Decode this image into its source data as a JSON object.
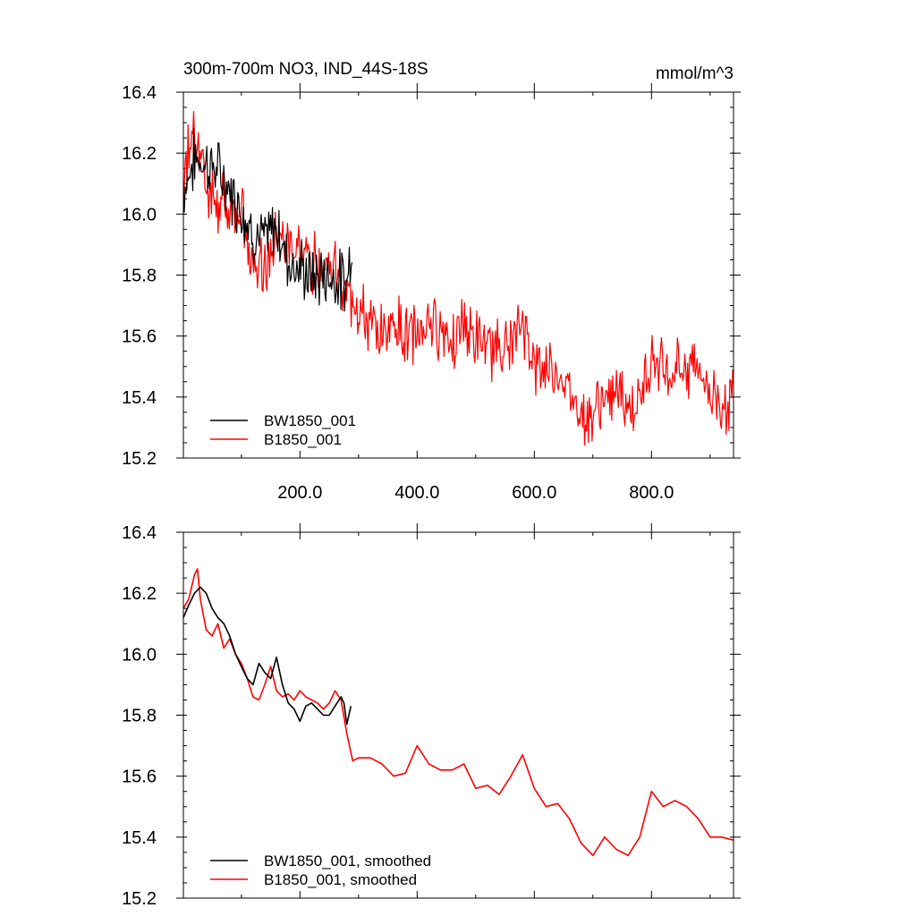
{
  "colors": {
    "BW1850_001": "#000000",
    "B1850_001": "#ff0000"
  },
  "chart_data": [
    {
      "type": "line",
      "title": "300m-700m NO3, IND_44S-18S",
      "units": "mmol/m^3",
      "xlim": [
        1,
        940
      ],
      "ylim": [
        15.2,
        16.4
      ],
      "x_ticks": [
        200,
        400,
        600,
        800
      ],
      "x_tick_labels": [
        "200.0",
        "400.0",
        "600.0",
        "800.0"
      ],
      "y_ticks": [
        15.2,
        15.4,
        15.6,
        15.8,
        16.0,
        16.2,
        16.4
      ],
      "y_tick_labels": [
        "15.2",
        "15.4",
        "15.6",
        "15.8",
        "16.0",
        "16.2",
        "16.4"
      ],
      "legend": "bottom-left",
      "series": [
        {
          "name": "BW1850_001",
          "color": "#000000",
          "x": [
            1,
            20,
            40,
            60,
            80,
            100,
            120,
            140,
            160,
            180,
            200,
            220,
            240,
            260,
            280,
            290
          ],
          "values": [
            16.08,
            16.18,
            16.17,
            16.14,
            16.08,
            16.02,
            15.94,
            15.91,
            15.96,
            15.85,
            15.82,
            15.79,
            15.8,
            15.79,
            15.77,
            15.95
          ]
        },
        {
          "name": "B1850_001",
          "color": "#ff0000",
          "x": [
            1,
            20,
            40,
            60,
            80,
            100,
            120,
            140,
            160,
            180,
            200,
            220,
            240,
            260,
            280,
            300,
            320,
            340,
            360,
            380,
            400,
            420,
            440,
            460,
            480,
            500,
            520,
            540,
            560,
            580,
            600,
            620,
            640,
            660,
            680,
            700,
            720,
            740,
            760,
            780,
            800,
            820,
            840,
            860,
            880,
            900,
            920,
            940
          ],
          "values": [
            16.12,
            16.3,
            16.08,
            16.04,
            16.0,
            15.98,
            15.88,
            15.82,
            15.93,
            15.89,
            15.87,
            15.84,
            15.85,
            15.82,
            15.75,
            15.68,
            15.62,
            15.62,
            15.64,
            15.6,
            15.61,
            15.66,
            15.62,
            15.6,
            15.64,
            15.58,
            15.55,
            15.58,
            15.55,
            15.65,
            15.5,
            15.5,
            15.48,
            15.42,
            15.36,
            15.34,
            15.4,
            15.4,
            15.36,
            15.38,
            15.55,
            15.47,
            15.48,
            15.51,
            15.5,
            15.42,
            15.38,
            15.4
          ]
        }
      ]
    },
    {
      "type": "line",
      "xlim": [
        1,
        940
      ],
      "ylim": [
        15.2,
        16.4
      ],
      "y_ticks": [
        15.2,
        15.4,
        15.6,
        15.8,
        16.0,
        16.2,
        16.4
      ],
      "y_tick_labels": [
        "15.2",
        "15.4",
        "15.6",
        "15.8",
        "16.0",
        "16.2",
        "16.4"
      ],
      "legend": "bottom-left",
      "series": [
        {
          "name": "BW1850_001, smoothed",
          "color": "#000000",
          "x": [
            1,
            10,
            20,
            30,
            40,
            50,
            60,
            70,
            80,
            90,
            100,
            110,
            120,
            130,
            140,
            150,
            160,
            170,
            180,
            190,
            200,
            210,
            220,
            230,
            240,
            250,
            260,
            270,
            275,
            280,
            287
          ],
          "values": [
            16.12,
            16.16,
            16.2,
            16.22,
            16.2,
            16.15,
            16.12,
            16.1,
            16.06,
            16.0,
            15.96,
            15.92,
            15.9,
            15.97,
            15.94,
            15.92,
            15.99,
            15.9,
            15.84,
            15.82,
            15.78,
            15.83,
            15.84,
            15.82,
            15.8,
            15.8,
            15.83,
            15.86,
            15.84,
            15.77,
            15.83
          ]
        },
        {
          "name": "B1850_001, smoothed",
          "color": "#ff0000",
          "x": [
            1,
            10,
            20,
            25,
            30,
            40,
            50,
            60,
            70,
            80,
            90,
            100,
            110,
            120,
            130,
            140,
            150,
            160,
            170,
            180,
            190,
            200,
            210,
            220,
            230,
            240,
            250,
            260,
            270,
            280,
            290,
            300,
            320,
            340,
            360,
            380,
            400,
            420,
            440,
            460,
            480,
            500,
            520,
            540,
            560,
            580,
            600,
            620,
            640,
            660,
            680,
            700,
            720,
            740,
            760,
            780,
            800,
            820,
            840,
            860,
            880,
            900,
            920,
            940
          ],
          "values": [
            16.15,
            16.18,
            16.26,
            16.28,
            16.18,
            16.08,
            16.06,
            16.1,
            16.02,
            16.05,
            16.0,
            15.97,
            15.92,
            15.86,
            15.85,
            15.9,
            15.96,
            15.88,
            15.86,
            15.87,
            15.85,
            15.88,
            15.86,
            15.85,
            15.84,
            15.82,
            15.84,
            15.88,
            15.85,
            15.74,
            15.65,
            15.66,
            15.66,
            15.64,
            15.6,
            15.61,
            15.7,
            15.64,
            15.62,
            15.62,
            15.64,
            15.56,
            15.57,
            15.54,
            15.6,
            15.67,
            15.56,
            15.5,
            15.51,
            15.46,
            15.38,
            15.34,
            15.4,
            15.36,
            15.34,
            15.4,
            15.55,
            15.5,
            15.52,
            15.5,
            15.46,
            15.4,
            15.4,
            15.39
          ]
        }
      ]
    }
  ]
}
